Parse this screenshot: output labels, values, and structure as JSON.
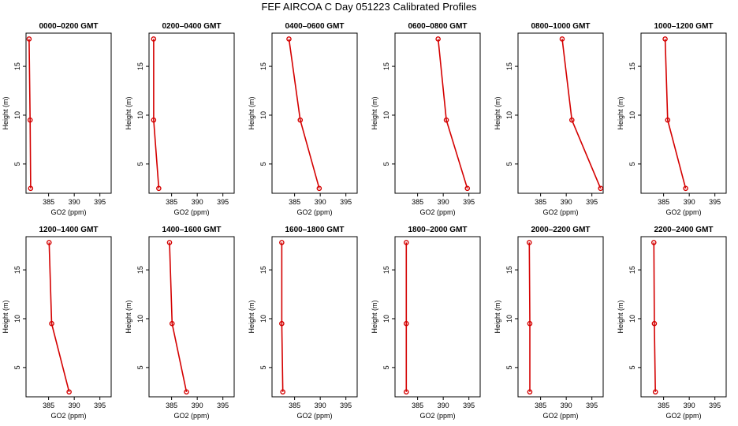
{
  "figure": {
    "title": "FEF AIRCOA C  Day 051223  Calibrated Profiles"
  },
  "chart_data": [
    {
      "type": "line",
      "title": "0000–0200 GMT",
      "xlabel": "GO2 (ppm)",
      "ylabel": "Height (m)",
      "xlim": [
        380.6,
        397.2
      ],
      "ylim": [
        2,
        18.4
      ],
      "xticks": [
        385,
        390,
        395
      ],
      "yticks": [
        5,
        10,
        15
      ],
      "series": [
        {
          "x": [
            381.2,
            381.4,
            381.5
          ],
          "y": [
            17.8,
            9.5,
            2.5
          ]
        }
      ]
    },
    {
      "type": "line",
      "title": "0200–0400 GMT",
      "xlabel": "GO2 (ppm)",
      "ylabel": "Height (m)",
      "xlim": [
        380.6,
        397.2
      ],
      "ylim": [
        2,
        18.4
      ],
      "xticks": [
        385,
        390,
        395
      ],
      "yticks": [
        5,
        10,
        15
      ],
      "series": [
        {
          "x": [
            381.5,
            381.5,
            382.5
          ],
          "y": [
            17.8,
            9.5,
            2.5
          ]
        }
      ]
    },
    {
      "type": "line",
      "title": "0400–0600 GMT",
      "xlabel": "GO2 (ppm)",
      "ylabel": "Height (m)",
      "xlim": [
        380.6,
        397.2
      ],
      "ylim": [
        2,
        18.4
      ],
      "xticks": [
        385,
        390,
        395
      ],
      "yticks": [
        5,
        10,
        15
      ],
      "series": [
        {
          "x": [
            383.9,
            386.1,
            389.8
          ],
          "y": [
            17.8,
            9.5,
            2.5
          ]
        }
      ]
    },
    {
      "type": "line",
      "title": "0600–0800 GMT",
      "xlabel": "GO2 (ppm)",
      "ylabel": "Height (m)",
      "xlim": [
        380.6,
        397.2
      ],
      "ylim": [
        2,
        18.4
      ],
      "xticks": [
        385,
        390,
        395
      ],
      "yticks": [
        5,
        10,
        15
      ],
      "series": [
        {
          "x": [
            389.0,
            390.6,
            394.7
          ],
          "y": [
            17.8,
            9.5,
            2.5
          ]
        }
      ]
    },
    {
      "type": "line",
      "title": "0800–1000 GMT",
      "xlabel": "GO2 (ppm)",
      "ylabel": "Height (m)",
      "xlim": [
        380.6,
        397.2
      ],
      "ylim": [
        2,
        18.4
      ],
      "xticks": [
        385,
        390,
        395
      ],
      "yticks": [
        5,
        10,
        15
      ],
      "series": [
        {
          "x": [
            389.2,
            391.1,
            396.7
          ],
          "y": [
            17.8,
            9.5,
            2.5
          ]
        }
      ]
    },
    {
      "type": "line",
      "title": "1000–1200 GMT",
      "xlabel": "GO2 (ppm)",
      "ylabel": "Height (m)",
      "xlim": [
        380.6,
        397.2
      ],
      "ylim": [
        2,
        18.4
      ],
      "xticks": [
        385,
        390,
        395
      ],
      "yticks": [
        5,
        10,
        15
      ],
      "series": [
        {
          "x": [
            385.3,
            385.8,
            389.3
          ],
          "y": [
            17.8,
            9.5,
            2.5
          ]
        }
      ]
    },
    {
      "type": "line",
      "title": "1200–1400 GMT",
      "xlabel": "GO2 (ppm)",
      "ylabel": "Height (m)",
      "xlim": [
        380.6,
        397.2
      ],
      "ylim": [
        2,
        18.4
      ],
      "xticks": [
        385,
        390,
        395
      ],
      "yticks": [
        5,
        10,
        15
      ],
      "series": [
        {
          "x": [
            385.1,
            385.6,
            389.0
          ],
          "y": [
            17.8,
            9.5,
            2.5
          ]
        }
      ]
    },
    {
      "type": "line",
      "title": "1400–1600 GMT",
      "xlabel": "GO2 (ppm)",
      "ylabel": "Height (m)",
      "xlim": [
        380.6,
        397.2
      ],
      "ylim": [
        2,
        18.4
      ],
      "xticks": [
        385,
        390,
        395
      ],
      "yticks": [
        5,
        10,
        15
      ],
      "series": [
        {
          "x": [
            384.6,
            385.1,
            387.9
          ],
          "y": [
            17.8,
            9.5,
            2.5
          ]
        }
      ]
    },
    {
      "type": "line",
      "title": "1600–1800 GMT",
      "xlabel": "GO2 (ppm)",
      "ylabel": "Height (m)",
      "xlim": [
        380.6,
        397.2
      ],
      "ylim": [
        2,
        18.4
      ],
      "xticks": [
        385,
        390,
        395
      ],
      "yticks": [
        5,
        10,
        15
      ],
      "series": [
        {
          "x": [
            382.5,
            382.5,
            382.7
          ],
          "y": [
            17.8,
            9.5,
            2.5
          ]
        }
      ]
    },
    {
      "type": "line",
      "title": "1800–2000 GMT",
      "xlabel": "GO2 (ppm)",
      "ylabel": "Height (m)",
      "xlim": [
        380.6,
        397.2
      ],
      "ylim": [
        2,
        18.4
      ],
      "xticks": [
        385,
        390,
        395
      ],
      "yticks": [
        5,
        10,
        15
      ],
      "series": [
        {
          "x": [
            382.8,
            382.8,
            382.8
          ],
          "y": [
            17.8,
            9.5,
            2.5
          ]
        }
      ]
    },
    {
      "type": "line",
      "title": "2000–2200 GMT",
      "xlabel": "GO2 (ppm)",
      "ylabel": "Height (m)",
      "xlim": [
        380.6,
        397.2
      ],
      "ylim": [
        2,
        18.4
      ],
      "xticks": [
        385,
        390,
        395
      ],
      "yticks": [
        5,
        10,
        15
      ],
      "series": [
        {
          "x": [
            382.8,
            382.9,
            382.9
          ],
          "y": [
            17.8,
            9.5,
            2.5
          ]
        }
      ]
    },
    {
      "type": "line",
      "title": "2200–2400 GMT",
      "xlabel": "GO2 (ppm)",
      "ylabel": "Height (m)",
      "xlim": [
        380.6,
        397.2
      ],
      "ylim": [
        2,
        18.4
      ],
      "xticks": [
        385,
        390,
        395
      ],
      "yticks": [
        5,
        10,
        15
      ],
      "series": [
        {
          "x": [
            383.1,
            383.2,
            383.4
          ],
          "y": [
            17.8,
            9.5,
            2.5
          ]
        }
      ]
    }
  ],
  "colors": {
    "series": "#d40000",
    "axes": "#000000",
    "background": "#ffffff"
  }
}
